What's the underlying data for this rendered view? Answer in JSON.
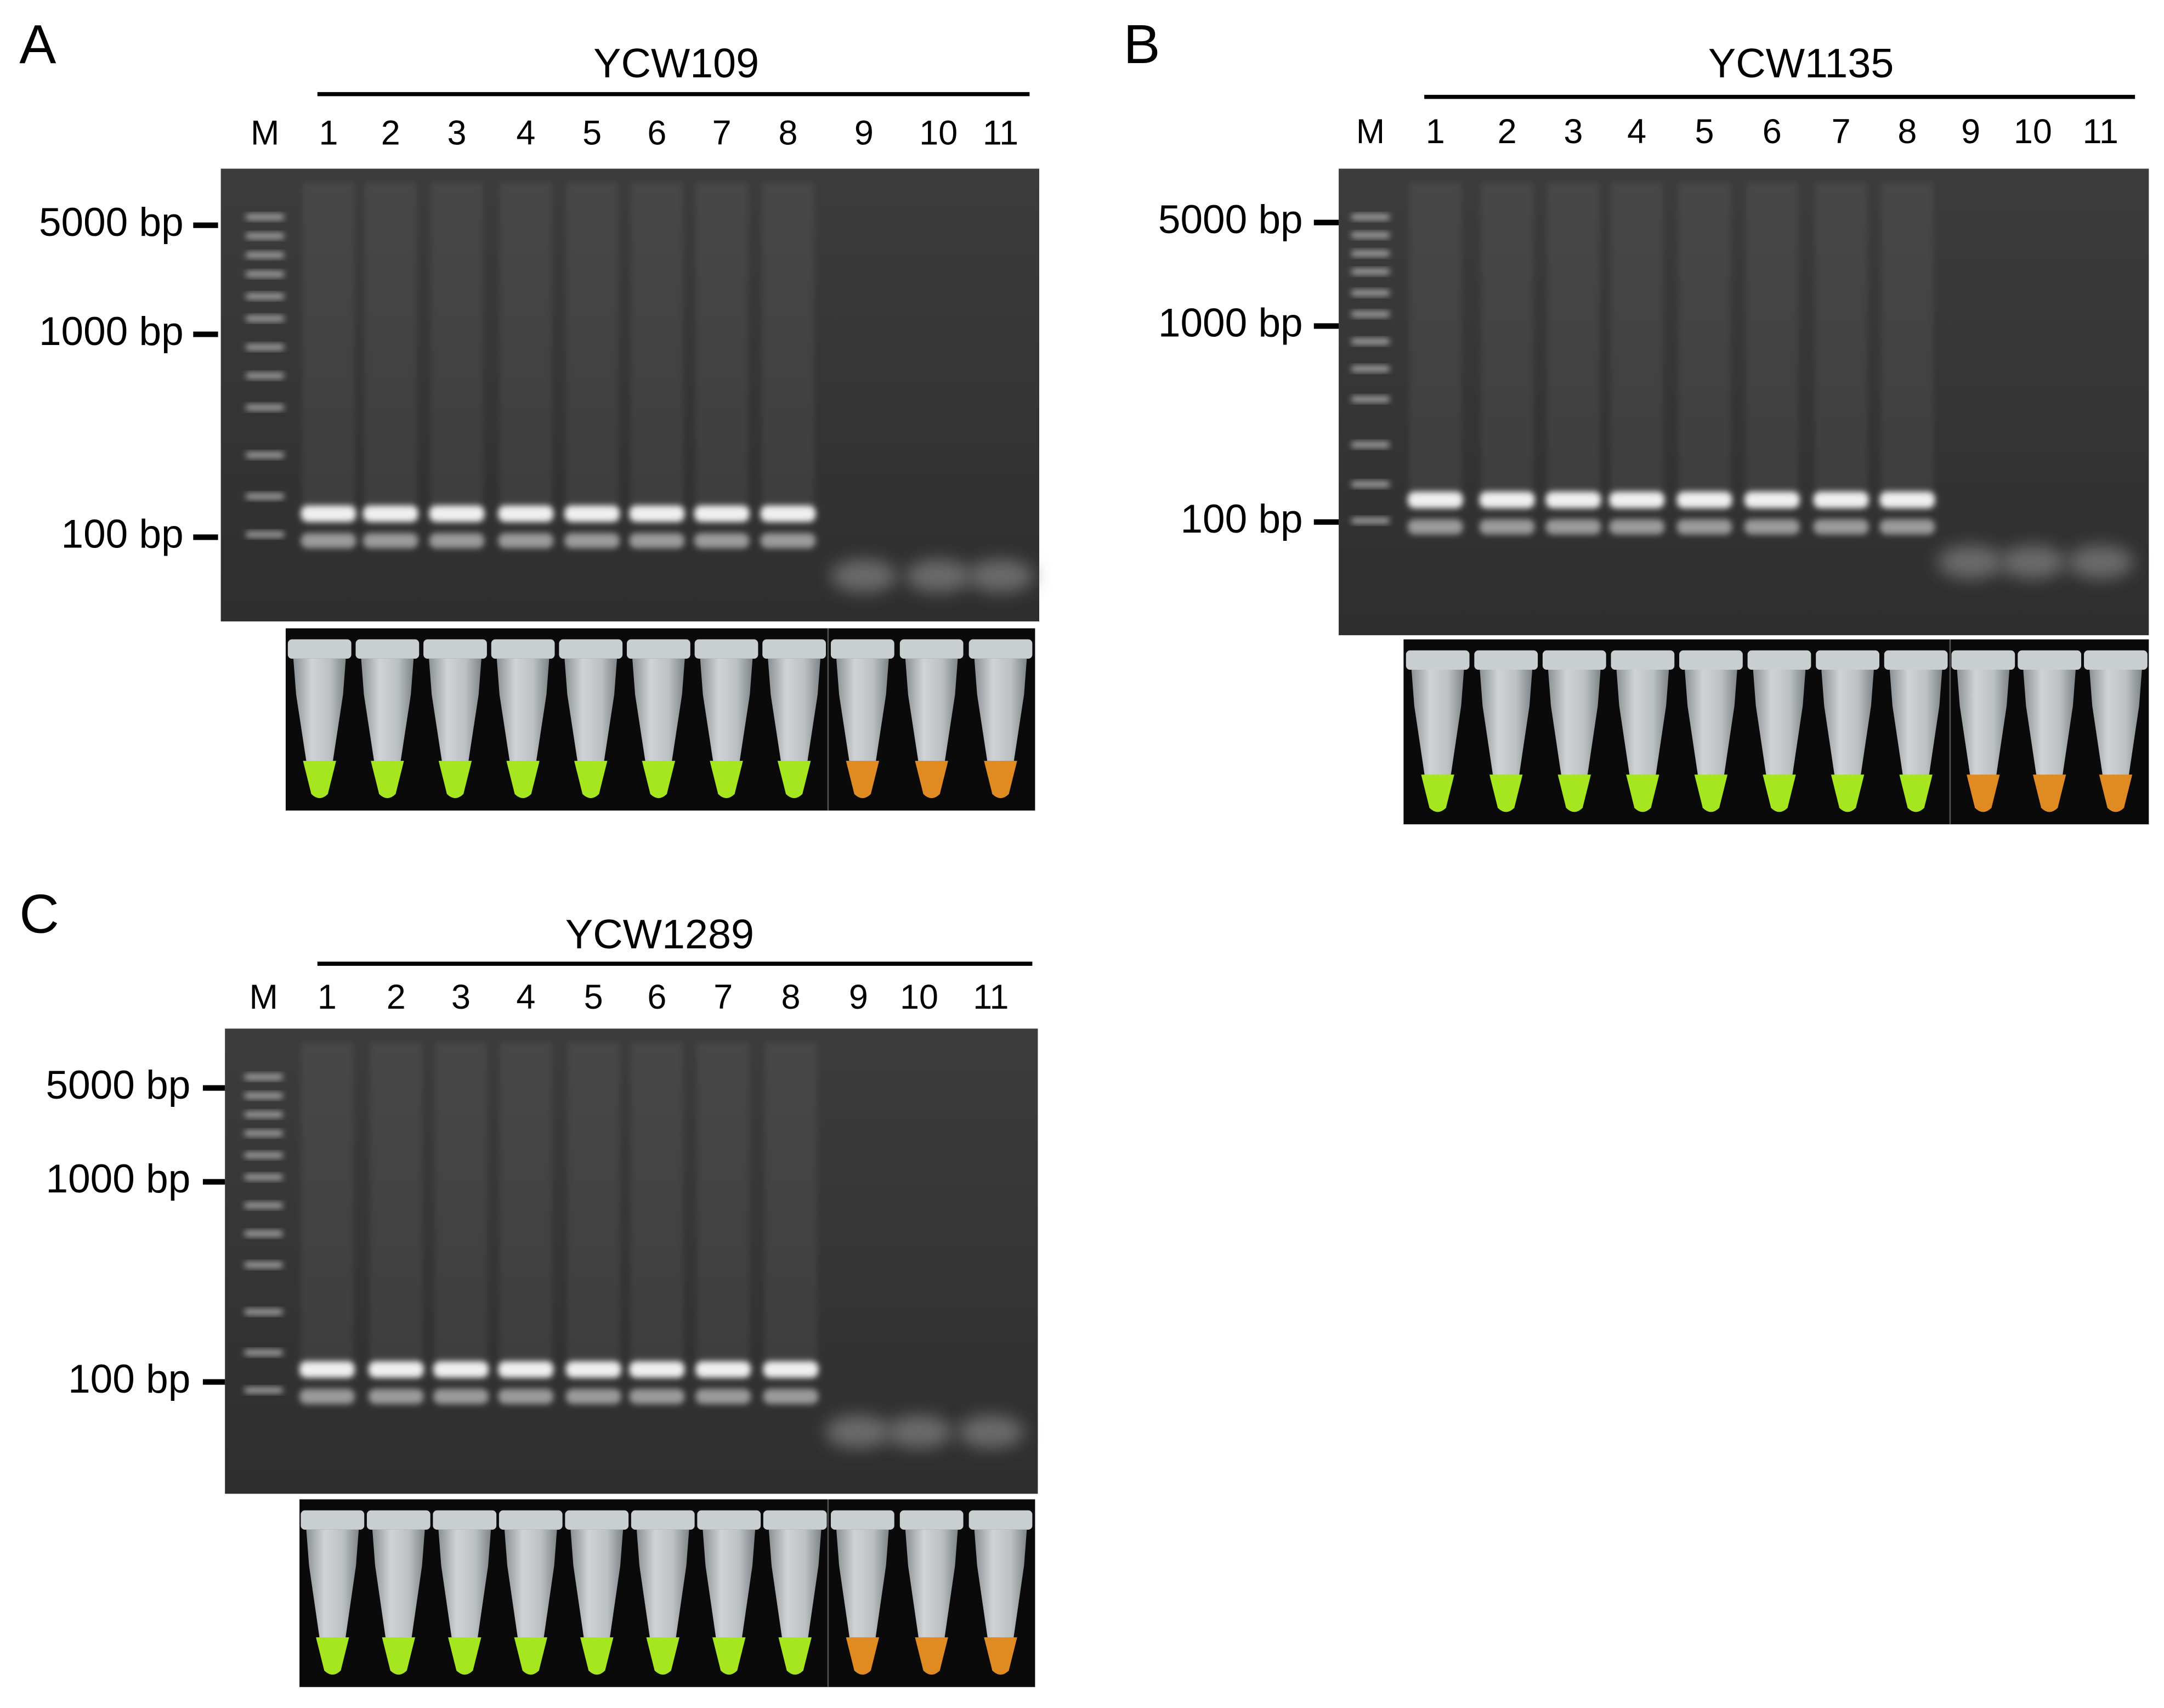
{
  "panels": [
    {
      "label": "A",
      "title": "YCW109",
      "lanes": [
        "M",
        "1",
        "2",
        "3",
        "4",
        "5",
        "6",
        "7",
        "8",
        "9",
        "10",
        "11"
      ],
      "markers": [
        "5000 bp",
        "1000 bp",
        "100 bp"
      ]
    },
    {
      "label": "B",
      "title": "YCW1135",
      "lanes": [
        "M",
        "1",
        "2",
        "3",
        "4",
        "5",
        "6",
        "7",
        "8",
        "9",
        "10",
        "11"
      ],
      "markers": [
        "5000 bp",
        "1000 bp",
        "100 bp"
      ]
    },
    {
      "label": "C",
      "title": "YCW1289",
      "lanes": [
        "M",
        "1",
        "2",
        "3",
        "4",
        "5",
        "6",
        "7",
        "8",
        "9",
        "10",
        "11"
      ],
      "markers": [
        "5000 bp",
        "1000 bp",
        "100 bp"
      ]
    }
  ]
}
